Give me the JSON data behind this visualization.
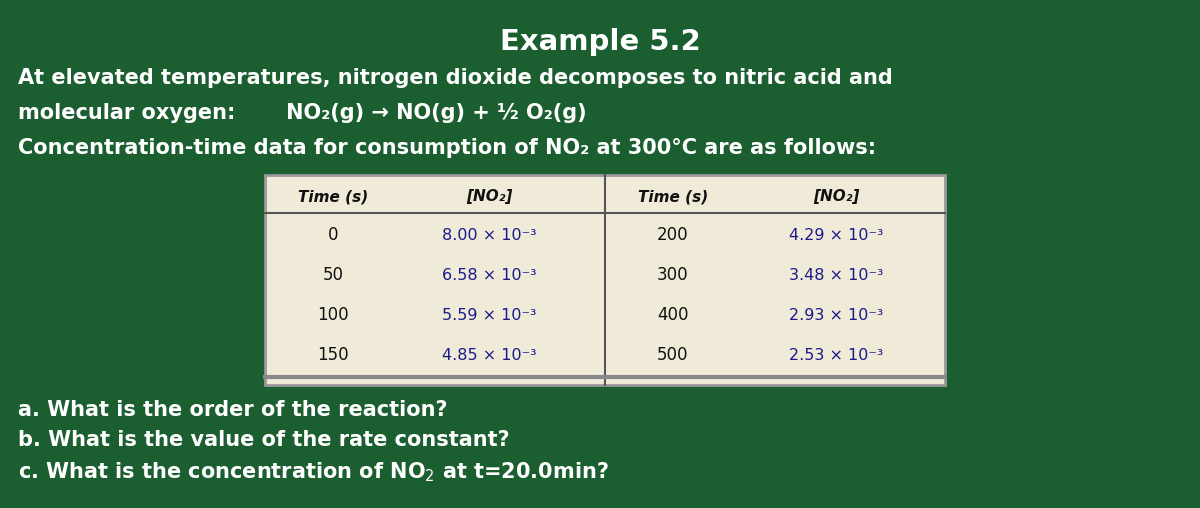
{
  "title": "Example 5.2",
  "bg_color": "#1b5e30",
  "text_color": "#ffffff",
  "table_bg": "#f0ead8",
  "line1": "At elevated temperatures, nitrogen dioxide decomposes to nitric acid and",
  "line2_part1": "molecular oxygen:       NO₂(g) → NO(g) + ½ O₂(g)",
  "line3": "Concentration-time data for consumption of NO₂ at 300°C are as follows:",
  "col_headers": [
    "Time (s)",
    "[NO₂]",
    "Time (s)",
    "[NO₂]"
  ],
  "left_times": [
    "0",
    "50",
    "100",
    "150"
  ],
  "left_concs": [
    "8.00 × 10⁻³",
    "6.58 × 10⁻³",
    "5.59 × 10⁻³",
    "4.85 × 10⁻³"
  ],
  "right_times": [
    "200",
    "300",
    "400",
    "500"
  ],
  "right_concs": [
    "4.29 × 10⁻³",
    "3.48 × 10⁻³",
    "2.93 × 10⁻³",
    "2.53 × 10⁻³"
  ],
  "conc_color": "#1a1a8c",
  "time_color": "#111111",
  "header_color": "#111111",
  "qa": "a. What is the order of the reaction?",
  "qb": "b. What is the value of the rate constant?",
  "qc": "c. What is the concentration of NO$_2$ at t=20.0min?"
}
